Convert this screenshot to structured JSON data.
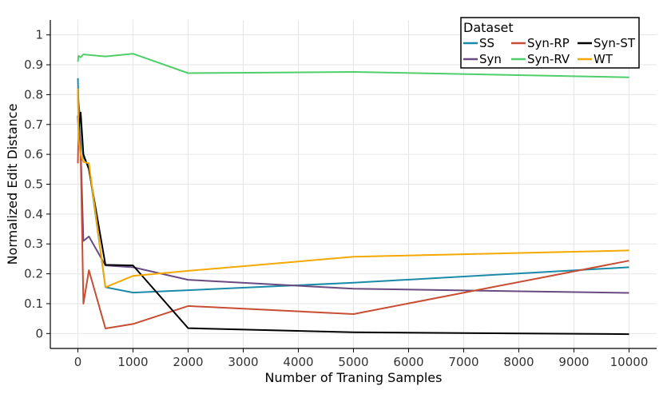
{
  "chart_data": {
    "type": "line",
    "xlabel": "Number of Traning Samples",
    "ylabel": "Normalized Edit Distance",
    "xlim": [
      -500,
      10500
    ],
    "ylim": [
      -0.05,
      1.05
    ],
    "x_ticks": [
      0,
      1000,
      2000,
      3000,
      4000,
      5000,
      6000,
      7000,
      8000,
      9000,
      10000
    ],
    "y_ticks": [
      0,
      0.1,
      0.2,
      0.3,
      0.4,
      0.5,
      0.6,
      0.7,
      0.8,
      0.9,
      1
    ],
    "x_tick_labels": [
      "0",
      "1000",
      "2000",
      "3000",
      "4000",
      "5000",
      "6000",
      "7000",
      "8000",
      "9000",
      "10000"
    ],
    "y_tick_labels": [
      "0",
      "0.1",
      "0.2",
      "0.3",
      "0.4",
      "0.5",
      "0.6",
      "0.7",
      "0.8",
      "0.9",
      "1"
    ],
    "grid": true,
    "legend": {
      "title": "Dataset",
      "position": "top-right",
      "columns": 3
    },
    "series": [
      {
        "name": "SS",
        "color": "#1b8aa8",
        "x": [
          0,
          10,
          50,
          100,
          200,
          500,
          1000,
          2000,
          5000,
          10000
        ],
        "y": [
          0.855,
          0.78,
          0.7,
          0.59,
          0.56,
          0.155,
          0.137,
          0.145,
          0.17,
          0.222
        ]
      },
      {
        "name": "Syn",
        "color": "#6a4a80",
        "x": [
          0,
          10,
          50,
          100,
          200,
          500,
          1000,
          2000,
          5000,
          10000
        ],
        "y": [
          0.82,
          0.72,
          0.62,
          0.31,
          0.325,
          0.228,
          0.222,
          0.18,
          0.15,
          0.136
        ]
      },
      {
        "name": "Syn-RP",
        "color": "#c84d32",
        "x": [
          0,
          10,
          50,
          100,
          200,
          500,
          1000,
          2000,
          5000,
          10000
        ],
        "y": [
          0.57,
          0.68,
          0.6,
          0.1,
          0.212,
          0.017,
          0.032,
          0.092,
          0.065,
          0.244
        ]
      },
      {
        "name": "Syn-RV",
        "color": "#4fce6a",
        "x": [
          0,
          10,
          50,
          100,
          200,
          500,
          1000,
          2000,
          5000,
          10000
        ],
        "y": [
          0.91,
          0.93,
          0.925,
          0.935,
          0.933,
          0.928,
          0.937,
          0.872,
          0.876,
          0.858
        ]
      },
      {
        "name": "Syn-ST",
        "color": "#000000",
        "x": [
          0,
          10,
          50,
          100,
          200,
          500,
          1000,
          2000,
          5000,
          10000
        ],
        "y": [
          0.73,
          0.68,
          0.74,
          0.6,
          0.55,
          0.23,
          0.228,
          0.018,
          0.004,
          -0.002
        ]
      },
      {
        "name": "WT",
        "color": "#f5a800",
        "x": [
          0,
          10,
          50,
          100,
          200,
          500,
          1000,
          2000,
          5000,
          10000
        ],
        "y": [
          0.82,
          0.65,
          0.6,
          0.575,
          0.57,
          0.155,
          0.193,
          0.21,
          0.257,
          0.278
        ]
      }
    ]
  }
}
